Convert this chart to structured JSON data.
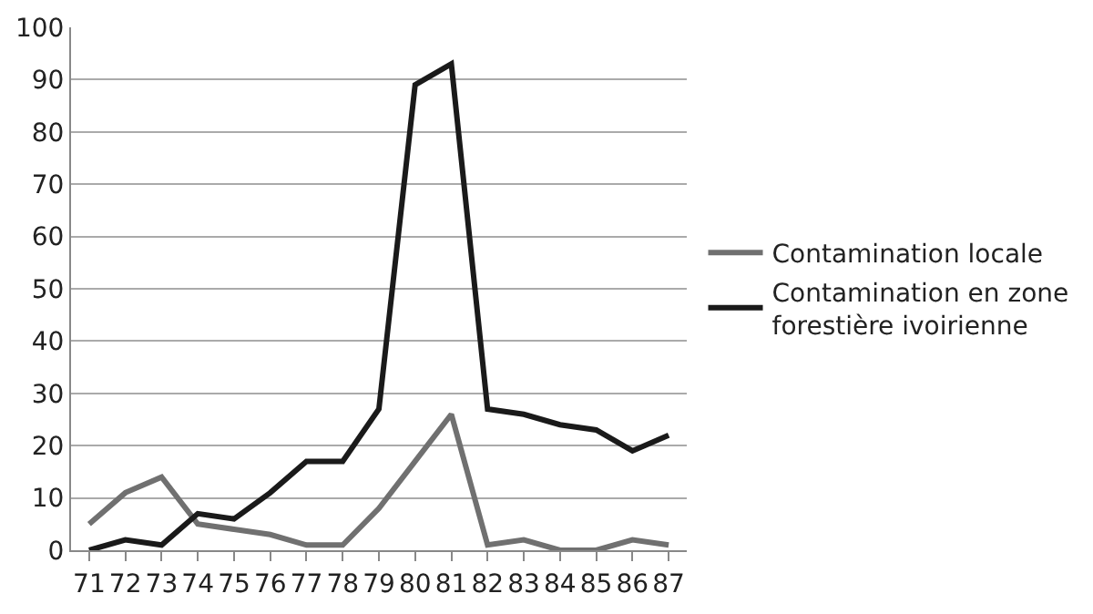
{
  "chart_data": {
    "type": "line",
    "categories": [
      "71",
      "72",
      "73",
      "74",
      "75",
      "76",
      "77",
      "78",
      "79",
      "80",
      "81",
      "82",
      "83",
      "84",
      "85",
      "86",
      "87"
    ],
    "series": [
      {
        "name": "Contamination locale",
        "color": "#707070",
        "values": [
          5,
          11,
          14,
          5,
          4,
          3,
          1,
          1,
          8,
          17,
          26,
          1,
          2,
          0,
          0,
          2,
          1
        ]
      },
      {
        "name": "Contamination en zone forestière ivoirienne",
        "color": "#1a1a1a",
        "values": [
          0,
          2,
          1,
          7,
          6,
          11,
          17,
          17,
          27,
          89,
          93,
          27,
          26,
          24,
          23,
          19,
          22
        ]
      }
    ],
    "ylim": [
      0,
      100
    ],
    "yticks": [
      0,
      10,
      20,
      30,
      40,
      50,
      60,
      70,
      80,
      90,
      100
    ],
    "grid": "y",
    "legend": "right",
    "marker": "none",
    "line_style": "solid"
  }
}
